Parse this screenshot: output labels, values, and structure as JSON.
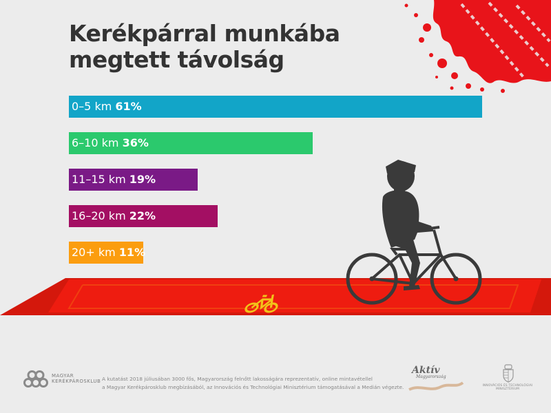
{
  "title_lines": [
    "Kerékpárral munkába",
    "megtett távolság"
  ],
  "chart_data": {
    "type": "bar",
    "orientation": "horizontal",
    "title": "Kerékpárral munkába megtett távolság",
    "unit": "%",
    "categories": [
      "0–5 km",
      "6–10 km",
      "11–15 km",
      "16–20 km",
      "20+ km"
    ],
    "values": [
      61,
      36,
      19,
      22,
      11
    ],
    "value_labels": [
      "61%",
      "36%",
      "19%",
      "22%",
      "11%"
    ],
    "colors": [
      "#12a5c8",
      "#2bc96d",
      "#7a1a86",
      "#a30f63",
      "#fb9d0f"
    ],
    "xlim": [
      0,
      61
    ],
    "grid": false,
    "legend": "none"
  },
  "footer": {
    "logo_lines": [
      "MAGYAR",
      "KERÉKPÁROSKLUB"
    ],
    "note_lines": [
      "A kutatást 2018 júliusában 3000 fős, Magyarország felnőtt lakosságára reprezentatív, online mintavétellel",
      "a Magyar Kerékpárosklub megbízásából, az Innovációs és Technológiai Minisztérium támogatásával a Medián végezte."
    ],
    "aktiv_title": "Aktív",
    "aktiv_sub": "Magyarország",
    "ministry_lines": [
      "INNOVÁCIÓS ÉS TECHNOLÓGIAI",
      "MINISZTÉRIUM"
    ]
  },
  "colors": {
    "background": "#ececec",
    "title": "#333333",
    "lane": "#ee1c10",
    "lane_edge": "#d4180c",
    "lane_line": "#f04a10",
    "lane_symbol": "#f2c21a",
    "cyclist": "#3a3a3a",
    "splatter": "#e8141a"
  },
  "icons": [
    "bike-lane-symbol-icon",
    "cyclist-silhouette-icon",
    "paint-splatter-icon",
    "mkk-chain-logo-icon",
    "ministry-crest-icon"
  ]
}
